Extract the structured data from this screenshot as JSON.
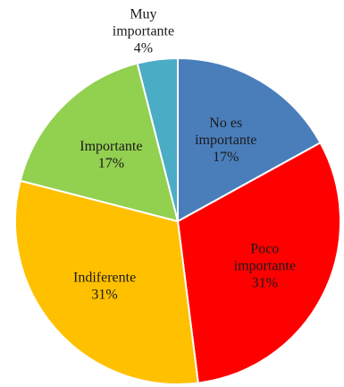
{
  "chart_data": {
    "type": "pie",
    "title": "",
    "slices": [
      {
        "label": "No es importante",
        "value": 17,
        "display": [
          "No es",
          "importante",
          "17%"
        ],
        "color": "#4a7ebb"
      },
      {
        "label": "Poco importante",
        "value": 31,
        "display": [
          "Poco",
          "importante",
          "31%"
        ],
        "color": "#ff0000"
      },
      {
        "label": "Indiferente",
        "value": 31,
        "display": [
          "Indiferente",
          "31%"
        ],
        "color": "#ffc000"
      },
      {
        "label": "Importante",
        "value": 17,
        "display": [
          "Importante",
          "17%"
        ],
        "color": "#92d050"
      },
      {
        "label": "Muy importante",
        "value": 4,
        "display": [
          "Muy",
          "importante",
          "4%"
        ],
        "color": "#4bacc6"
      }
    ],
    "start": "12 o'clock",
    "direction": "clockwise",
    "legend": "none"
  }
}
